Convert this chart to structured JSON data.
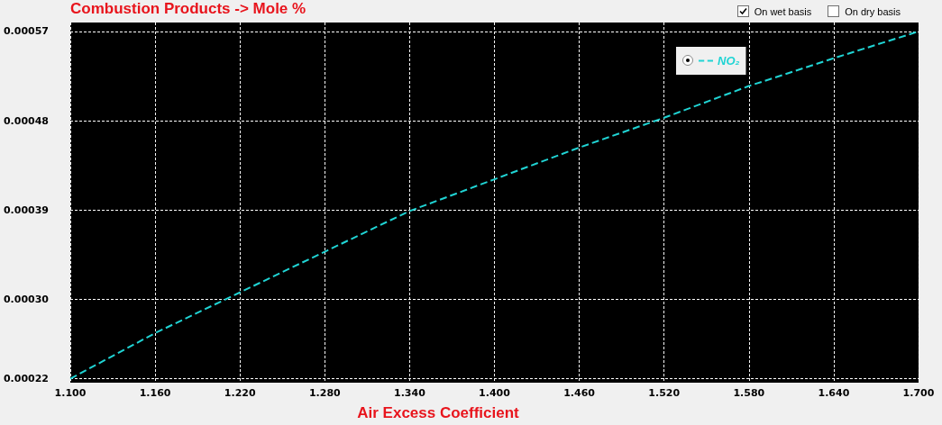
{
  "chart_data": {
    "type": "line",
    "title": "Combustion Products -> Mole %",
    "xlabel": "Air Excess Coefficient",
    "annotations": [
      "On wet basis",
      "On dry basis"
    ],
    "x": [
      1.1,
      1.16,
      1.22,
      1.28,
      1.34,
      1.4,
      1.46,
      1.52,
      1.58,
      1.64,
      1.7
    ],
    "series": [
      {
        "name": "NO₂",
        "color": "#20d4d4",
        "values": [
          0.00022,
          0.000266,
          0.000307,
          0.000348,
          0.000389,
          0.000421,
          0.000453,
          0.000483,
          0.000515,
          0.000543,
          0.00057
        ]
      }
    ],
    "xlim": [
      1.1,
      1.7
    ],
    "xticks": [
      {
        "value": 1.1,
        "label": "1.100"
      },
      {
        "value": 1.16,
        "label": "1.160"
      },
      {
        "value": 1.22,
        "label": "1.220"
      },
      {
        "value": 1.28,
        "label": "1.280"
      },
      {
        "value": 1.34,
        "label": "1.340"
      },
      {
        "value": 1.4,
        "label": "1.400"
      },
      {
        "value": 1.46,
        "label": "1.460"
      },
      {
        "value": 1.52,
        "label": "1.520"
      },
      {
        "value": 1.58,
        "label": "1.580"
      },
      {
        "value": 1.64,
        "label": "1.640"
      },
      {
        "value": 1.7,
        "label": "1.700"
      }
    ],
    "ylim": [
      0.000216,
      0.000579
    ],
    "yticks": [
      0.00022,
      {
        "value": 0.0003,
        "label": "0.00030"
      },
      0.00039,
      0.00048,
      0.00057
    ],
    "grid": true,
    "legend": "top right",
    "marker": "none",
    "line_style": "dashed"
  }
}
